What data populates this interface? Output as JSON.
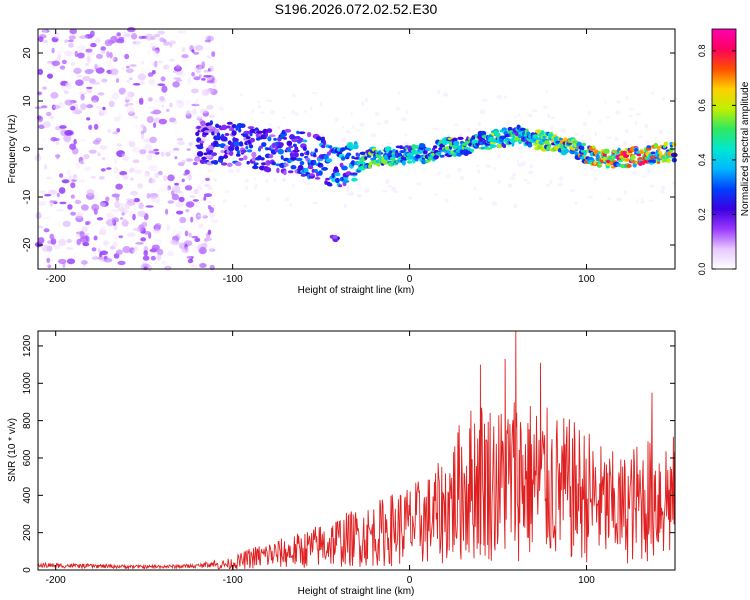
{
  "figure_title": "S196.2026.072.02.52.E30",
  "chart_data": [
    {
      "type": "heatmap",
      "title": "S196.2026.072.02.52.E30",
      "xlabel": "Height of straight line (km)",
      "ylabel": "Frequency (Hz)",
      "xlim": [
        -210,
        150
      ],
      "ylim": [
        -25,
        25
      ],
      "x_ticks": [
        -200,
        -100,
        0,
        100
      ],
      "y_ticks": [
        -20,
        -10,
        0,
        10,
        20
      ],
      "colorbar": {
        "label": "Normalized spectral amplitude",
        "range": [
          0,
          0.88
        ],
        "ticks": [
          0.0,
          0.2,
          0.4,
          0.6,
          0.8
        ],
        "colormap": [
          "#ffffff",
          "#e8c8ff",
          "#9a38ff",
          "#3a00e0",
          "#0040ff",
          "#00b8ff",
          "#00e8d0",
          "#30e860",
          "#c0f000",
          "#ffd000",
          "#ff5000",
          "#ff0060",
          "#ff00b0"
        ]
      },
      "ridge": {
        "x": [
          -120,
          -100,
          -80,
          -60,
          -50,
          -40,
          -30,
          -20,
          -10,
          0,
          10,
          20,
          30,
          40,
          50,
          60,
          70,
          80,
          90,
          100,
          110,
          120,
          130,
          140,
          150
        ],
        "frequency": [
          1.5,
          1.0,
          0.0,
          -1.0,
          -2.0,
          -4.0,
          -3.0,
          -1.5,
          -1.5,
          -1.0,
          -1.0,
          0.5,
          0.5,
          1.5,
          2.0,
          3.0,
          2.0,
          1.5,
          0.5,
          -1.0,
          -2.0,
          -2.0,
          -1.5,
          -1.0,
          -0.5
        ],
        "amplitude": [
          0.25,
          0.3,
          0.3,
          0.35,
          0.35,
          0.4,
          0.45,
          0.55,
          0.5,
          0.45,
          0.5,
          0.55,
          0.5,
          0.55,
          0.55,
          0.5,
          0.55,
          0.6,
          0.65,
          0.7,
          0.75,
          0.8,
          0.8,
          0.75,
          0.6
        ]
      },
      "noise_region_x": [
        -210,
        -120
      ],
      "secondary_feature": {
        "x": -43,
        "frequency": -18.5,
        "amplitude": 0.2
      }
    },
    {
      "type": "line",
      "xlabel": "Height of straight line (km)",
      "ylabel": "SNR (10 * v/v)",
      "xlim": [
        -210,
        150
      ],
      "ylim": [
        0,
        1280
      ],
      "x_ticks": [
        -200,
        -100,
        0,
        100
      ],
      "y_ticks": [
        0,
        200,
        400,
        600,
        800,
        1000,
        1200
      ],
      "series": [
        {
          "name": "SNR",
          "color": "#e02020",
          "x": [
            -210,
            -180,
            -150,
            -120,
            -100,
            -90,
            -80,
            -70,
            -60,
            -50,
            -40,
            -30,
            -20,
            -10,
            0,
            10,
            20,
            30,
            40,
            50,
            60,
            70,
            80,
            90,
            100,
            110,
            120,
            130,
            140,
            150
          ],
          "values": [
            30,
            25,
            20,
            25,
            60,
            110,
            140,
            160,
            190,
            230,
            270,
            300,
            330,
            380,
            420,
            460,
            560,
            760,
            860,
            800,
            880,
            830,
            780,
            740,
            700,
            600,
            560,
            640,
            700,
            660
          ],
          "peaks": [
            {
              "x": 40,
              "value": 1100
            },
            {
              "x": 54,
              "value": 1130
            },
            {
              "x": 60,
              "value": 1280
            },
            {
              "x": 74,
              "value": 1110
            },
            {
              "x": 137,
              "value": 950
            }
          ]
        }
      ]
    }
  ]
}
